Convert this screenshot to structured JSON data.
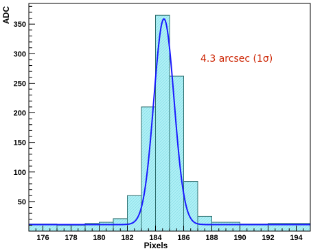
{
  "chart_data": {
    "type": "bar",
    "title": "",
    "xlabel": "Pixels",
    "ylabel": "ADC",
    "xlim": [
      175,
      195
    ],
    "ylim": [
      0,
      385
    ],
    "xticks": [
      176,
      178,
      180,
      182,
      184,
      186,
      188,
      190,
      192,
      194
    ],
    "yticks": [
      50,
      100,
      150,
      200,
      250,
      300,
      350
    ],
    "grid": false,
    "legend": "none",
    "series": [
      {
        "style": "histogram",
        "bin_edges": [
          175,
          177,
          179,
          180,
          181,
          182,
          183,
          184,
          185,
          186,
          187,
          188,
          190,
          192,
          195
        ],
        "values": [
          12,
          10,
          13,
          15,
          21,
          60,
          210,
          365,
          262,
          84,
          25,
          15,
          12,
          13
        ],
        "fill_color": "#aef0f6",
        "edge_color": "#2f6f6f"
      },
      {
        "style": "gaussian_fit",
        "amplitude": 348,
        "mean": 184.6,
        "sigma": 0.72,
        "baseline": 11,
        "color": "#1a1aff"
      }
    ],
    "annotations": [
      {
        "text": "4.3 arcsec (1σ)",
        "color": "#cc2200"
      }
    ]
  }
}
